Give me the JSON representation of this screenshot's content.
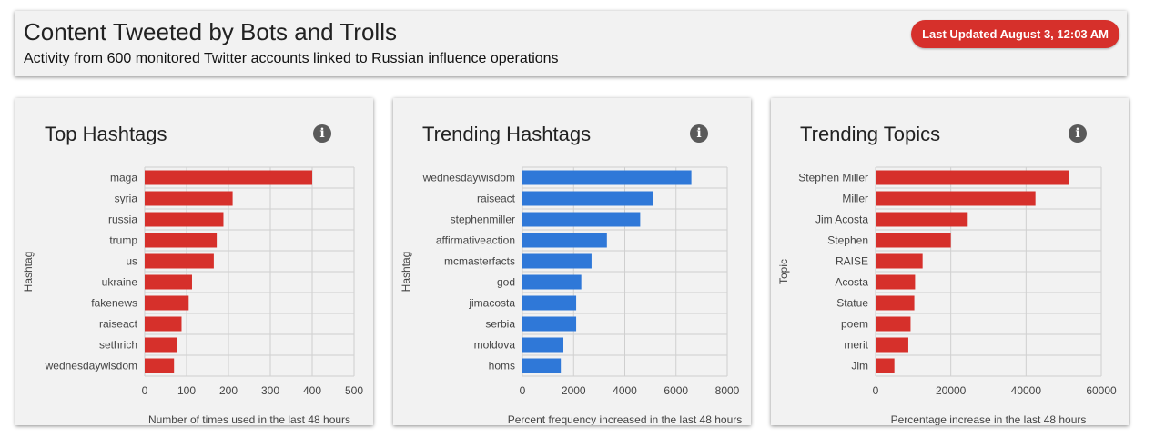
{
  "header": {
    "title": "Content Tweeted by Bots and Trolls",
    "subtitle": "Activity from 600 monitored Twitter accounts linked to Russian influence operations",
    "last_updated": "Last Updated August 3, 12:03 AM"
  },
  "colors": {
    "red": "#d6302b",
    "blue": "#2f78d8",
    "badge": "#d6302b"
  },
  "icons": {
    "info": "info-icon"
  },
  "chart_data": [
    {
      "type": "bar",
      "orientation": "horizontal",
      "title": "Top Hashtags",
      "info_glyph": "i",
      "categories": [
        "maga",
        "syria",
        "russia",
        "trump",
        "us",
        "ukraine",
        "fakenews",
        "raiseact",
        "sethrich",
        "wednesdaywisdom"
      ],
      "values": [
        400,
        210,
        188,
        172,
        165,
        113,
        105,
        88,
        78,
        70
      ],
      "xlabel": "Number of times used in the last 48 hours",
      "ylabel": "Hashtag",
      "xlim": [
        0,
        500
      ],
      "xticks": [
        0,
        100,
        200,
        300,
        400,
        500
      ],
      "xtick_labels": [
        "0",
        "100",
        "200",
        "300",
        "400",
        "500"
      ],
      "grid": true,
      "color": "#d6302b"
    },
    {
      "type": "bar",
      "orientation": "horizontal",
      "title": "Trending Hashtags",
      "info_glyph": "i",
      "categories": [
        "wednesdaywisdom",
        "raiseact",
        "stephenmiller",
        "affirmativeaction",
        "mcmasterfacts",
        "god",
        "jimacosta",
        "serbia",
        "moldova",
        "homs"
      ],
      "values": [
        6600,
        5100,
        4600,
        3300,
        2700,
        2300,
        2100,
        2100,
        1600,
        1500
      ],
      "xlabel": "Percent frequency increased in the last 48 hours",
      "ylabel": "Hashtag",
      "xlim": [
        0,
        8000
      ],
      "xticks": [
        0,
        2000,
        4000,
        6000,
        8000
      ],
      "xtick_labels": [
        "0",
        "2000",
        "4000",
        "6000",
        "8000"
      ],
      "grid": true,
      "color": "#2f78d8"
    },
    {
      "type": "bar",
      "orientation": "horizontal",
      "title": "Trending Topics",
      "info_glyph": "i",
      "categories": [
        "Stephen Miller",
        "Miller",
        "Jim Acosta",
        "Stephen",
        "RAISE",
        "Acosta",
        "Statue",
        "poem",
        "merit",
        "Jim"
      ],
      "values": [
        51500,
        42500,
        24500,
        20000,
        12500,
        10500,
        10300,
        9300,
        8700,
        5000
      ],
      "xlabel": "Percentage increase in the last 48 hours",
      "ylabel": "Topic",
      "xlim": [
        0,
        60000
      ],
      "xticks": [
        0,
        20000,
        40000,
        60000
      ],
      "xtick_labels": [
        "0",
        "20000",
        "40000",
        "60000"
      ],
      "grid": true,
      "color": "#d6302b"
    }
  ]
}
